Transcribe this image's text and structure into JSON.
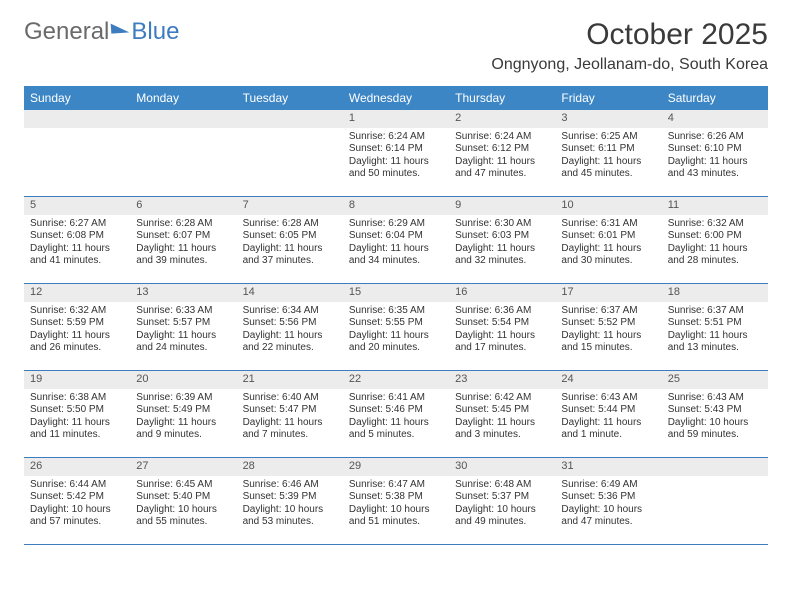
{
  "logo": {
    "word1": "General",
    "word2": "Blue"
  },
  "title": {
    "month": "October 2025",
    "location": "Ongnyong, Jeollanam-do, South Korea"
  },
  "colors": {
    "header_bg": "#3d86c6",
    "header_text": "#ffffff",
    "rule": "#3d7cbf",
    "daynum_bg": "#ececec"
  },
  "weekdays": [
    "Sunday",
    "Monday",
    "Tuesday",
    "Wednesday",
    "Thursday",
    "Friday",
    "Saturday"
  ],
  "layout": {
    "first_weekday_index": 3,
    "days_in_month": 31
  },
  "days": {
    "1": {
      "sunrise": "Sunrise: 6:24 AM",
      "sunset": "Sunset: 6:14 PM",
      "daylight1": "Daylight: 11 hours",
      "daylight2": "and 50 minutes."
    },
    "2": {
      "sunrise": "Sunrise: 6:24 AM",
      "sunset": "Sunset: 6:12 PM",
      "daylight1": "Daylight: 11 hours",
      "daylight2": "and 47 minutes."
    },
    "3": {
      "sunrise": "Sunrise: 6:25 AM",
      "sunset": "Sunset: 6:11 PM",
      "daylight1": "Daylight: 11 hours",
      "daylight2": "and 45 minutes."
    },
    "4": {
      "sunrise": "Sunrise: 6:26 AM",
      "sunset": "Sunset: 6:10 PM",
      "daylight1": "Daylight: 11 hours",
      "daylight2": "and 43 minutes."
    },
    "5": {
      "sunrise": "Sunrise: 6:27 AM",
      "sunset": "Sunset: 6:08 PM",
      "daylight1": "Daylight: 11 hours",
      "daylight2": "and 41 minutes."
    },
    "6": {
      "sunrise": "Sunrise: 6:28 AM",
      "sunset": "Sunset: 6:07 PM",
      "daylight1": "Daylight: 11 hours",
      "daylight2": "and 39 minutes."
    },
    "7": {
      "sunrise": "Sunrise: 6:28 AM",
      "sunset": "Sunset: 6:05 PM",
      "daylight1": "Daylight: 11 hours",
      "daylight2": "and 37 minutes."
    },
    "8": {
      "sunrise": "Sunrise: 6:29 AM",
      "sunset": "Sunset: 6:04 PM",
      "daylight1": "Daylight: 11 hours",
      "daylight2": "and 34 minutes."
    },
    "9": {
      "sunrise": "Sunrise: 6:30 AM",
      "sunset": "Sunset: 6:03 PM",
      "daylight1": "Daylight: 11 hours",
      "daylight2": "and 32 minutes."
    },
    "10": {
      "sunrise": "Sunrise: 6:31 AM",
      "sunset": "Sunset: 6:01 PM",
      "daylight1": "Daylight: 11 hours",
      "daylight2": "and 30 minutes."
    },
    "11": {
      "sunrise": "Sunrise: 6:32 AM",
      "sunset": "Sunset: 6:00 PM",
      "daylight1": "Daylight: 11 hours",
      "daylight2": "and 28 minutes."
    },
    "12": {
      "sunrise": "Sunrise: 6:32 AM",
      "sunset": "Sunset: 5:59 PM",
      "daylight1": "Daylight: 11 hours",
      "daylight2": "and 26 minutes."
    },
    "13": {
      "sunrise": "Sunrise: 6:33 AM",
      "sunset": "Sunset: 5:57 PM",
      "daylight1": "Daylight: 11 hours",
      "daylight2": "and 24 minutes."
    },
    "14": {
      "sunrise": "Sunrise: 6:34 AM",
      "sunset": "Sunset: 5:56 PM",
      "daylight1": "Daylight: 11 hours",
      "daylight2": "and 22 minutes."
    },
    "15": {
      "sunrise": "Sunrise: 6:35 AM",
      "sunset": "Sunset: 5:55 PM",
      "daylight1": "Daylight: 11 hours",
      "daylight2": "and 20 minutes."
    },
    "16": {
      "sunrise": "Sunrise: 6:36 AM",
      "sunset": "Sunset: 5:54 PM",
      "daylight1": "Daylight: 11 hours",
      "daylight2": "and 17 minutes."
    },
    "17": {
      "sunrise": "Sunrise: 6:37 AM",
      "sunset": "Sunset: 5:52 PM",
      "daylight1": "Daylight: 11 hours",
      "daylight2": "and 15 minutes."
    },
    "18": {
      "sunrise": "Sunrise: 6:37 AM",
      "sunset": "Sunset: 5:51 PM",
      "daylight1": "Daylight: 11 hours",
      "daylight2": "and 13 minutes."
    },
    "19": {
      "sunrise": "Sunrise: 6:38 AM",
      "sunset": "Sunset: 5:50 PM",
      "daylight1": "Daylight: 11 hours",
      "daylight2": "and 11 minutes."
    },
    "20": {
      "sunrise": "Sunrise: 6:39 AM",
      "sunset": "Sunset: 5:49 PM",
      "daylight1": "Daylight: 11 hours",
      "daylight2": "and 9 minutes."
    },
    "21": {
      "sunrise": "Sunrise: 6:40 AM",
      "sunset": "Sunset: 5:47 PM",
      "daylight1": "Daylight: 11 hours",
      "daylight2": "and 7 minutes."
    },
    "22": {
      "sunrise": "Sunrise: 6:41 AM",
      "sunset": "Sunset: 5:46 PM",
      "daylight1": "Daylight: 11 hours",
      "daylight2": "and 5 minutes."
    },
    "23": {
      "sunrise": "Sunrise: 6:42 AM",
      "sunset": "Sunset: 5:45 PM",
      "daylight1": "Daylight: 11 hours",
      "daylight2": "and 3 minutes."
    },
    "24": {
      "sunrise": "Sunrise: 6:43 AM",
      "sunset": "Sunset: 5:44 PM",
      "daylight1": "Daylight: 11 hours",
      "daylight2": "and 1 minute."
    },
    "25": {
      "sunrise": "Sunrise: 6:43 AM",
      "sunset": "Sunset: 5:43 PM",
      "daylight1": "Daylight: 10 hours",
      "daylight2": "and 59 minutes."
    },
    "26": {
      "sunrise": "Sunrise: 6:44 AM",
      "sunset": "Sunset: 5:42 PM",
      "daylight1": "Daylight: 10 hours",
      "daylight2": "and 57 minutes."
    },
    "27": {
      "sunrise": "Sunrise: 6:45 AM",
      "sunset": "Sunset: 5:40 PM",
      "daylight1": "Daylight: 10 hours",
      "daylight2": "and 55 minutes."
    },
    "28": {
      "sunrise": "Sunrise: 6:46 AM",
      "sunset": "Sunset: 5:39 PM",
      "daylight1": "Daylight: 10 hours",
      "daylight2": "and 53 minutes."
    },
    "29": {
      "sunrise": "Sunrise: 6:47 AM",
      "sunset": "Sunset: 5:38 PM",
      "daylight1": "Daylight: 10 hours",
      "daylight2": "and 51 minutes."
    },
    "30": {
      "sunrise": "Sunrise: 6:48 AM",
      "sunset": "Sunset: 5:37 PM",
      "daylight1": "Daylight: 10 hours",
      "daylight2": "and 49 minutes."
    },
    "31": {
      "sunrise": "Sunrise: 6:49 AM",
      "sunset": "Sunset: 5:36 PM",
      "daylight1": "Daylight: 10 hours",
      "daylight2": "and 47 minutes."
    }
  }
}
